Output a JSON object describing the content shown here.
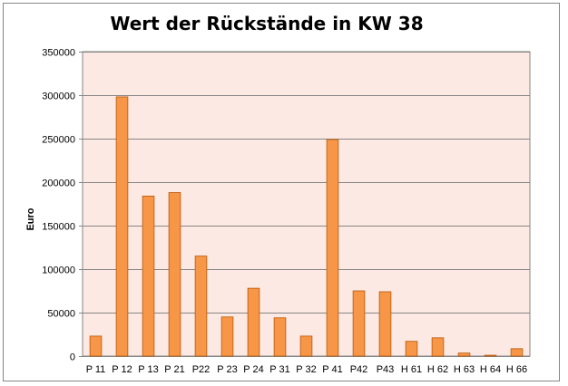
{
  "chart_data": {
    "type": "bar",
    "title": "Wert der Rückstände in KW 38",
    "xlabel": "",
    "ylabel": "Euro",
    "ylim": [
      0,
      350000
    ],
    "yticks": [
      0,
      50000,
      100000,
      150000,
      200000,
      250000,
      300000,
      350000
    ],
    "grid": true,
    "legend": "none",
    "categories": [
      "P 11",
      "P 12",
      "P 13",
      "P 21",
      "P22",
      "P 23",
      "P 24",
      "P 31",
      "P 32",
      "P 41",
      "P42",
      "P43",
      "H 61",
      "H 62",
      "H 63",
      "H 64",
      "H 66"
    ],
    "values": [
      23000,
      298000,
      184000,
      188000,
      115000,
      45000,
      78000,
      44000,
      23000,
      249000,
      75000,
      74000,
      17000,
      21000,
      3500,
      1000,
      8500
    ],
    "colors": {
      "bar_fill": "#F79646",
      "bar_stroke": "#B65708",
      "plot_bg": "#FDE9E4",
      "grid": "#868686"
    }
  }
}
